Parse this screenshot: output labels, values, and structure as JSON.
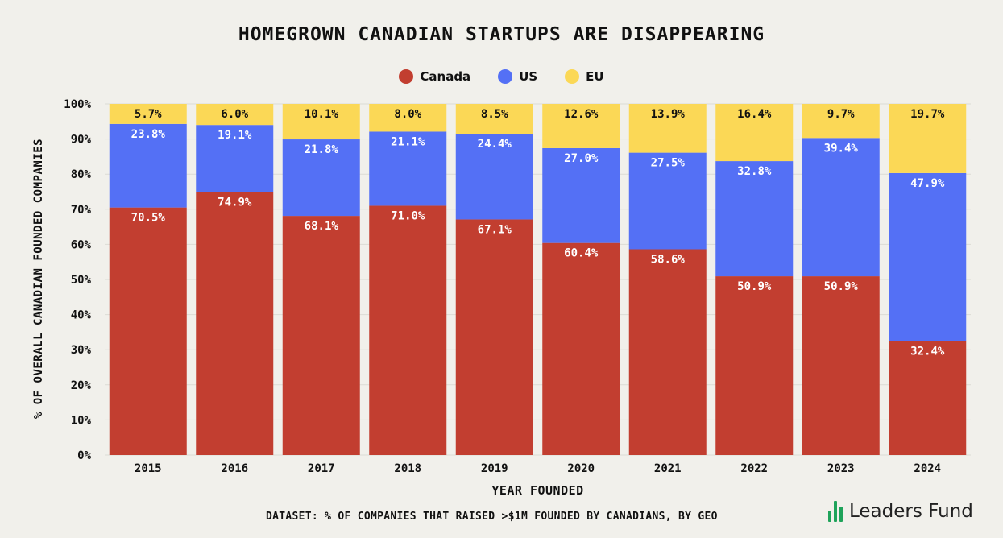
{
  "chart_data": {
    "type": "bar",
    "stacked": true,
    "title": "HOMEGROWN CANADIAN STARTUPS ARE DISAPPEARING",
    "xlabel": "YEAR FOUNDED",
    "ylabel": "% OF OVERALL CANADIAN FOUNDED COMPANIES",
    "ylim": [
      0,
      100
    ],
    "yticks": [
      0,
      10,
      20,
      30,
      40,
      50,
      60,
      70,
      80,
      90,
      100
    ],
    "ytick_suffix": "%",
    "categories": [
      "2015",
      "2016",
      "2017",
      "2018",
      "2019",
      "2020",
      "2021",
      "2022",
      "2023",
      "2024"
    ],
    "series": [
      {
        "name": "Canada",
        "color": "#c23e30",
        "values": [
          70.5,
          74.9,
          68.1,
          71.0,
          67.1,
          60.4,
          58.6,
          50.9,
          50.9,
          32.4
        ]
      },
      {
        "name": "US",
        "color": "#5470f5",
        "values": [
          23.8,
          19.1,
          21.8,
          21.1,
          24.4,
          27.0,
          27.5,
          32.8,
          39.4,
          47.9
        ]
      },
      {
        "name": "EU",
        "color": "#fbd856",
        "values": [
          5.7,
          6.0,
          10.1,
          8.0,
          8.5,
          12.6,
          13.9,
          16.4,
          9.7,
          19.7
        ]
      }
    ],
    "legend": "top-center",
    "grid": true
  },
  "footer": {
    "dataset": "DATASET: % OF COMPANIES THAT RAISED >$1M FOUNDED BY CANADIANS, BY GEO",
    "logo_text": "Leaders Fund",
    "logo_color": "#1fa35a"
  }
}
